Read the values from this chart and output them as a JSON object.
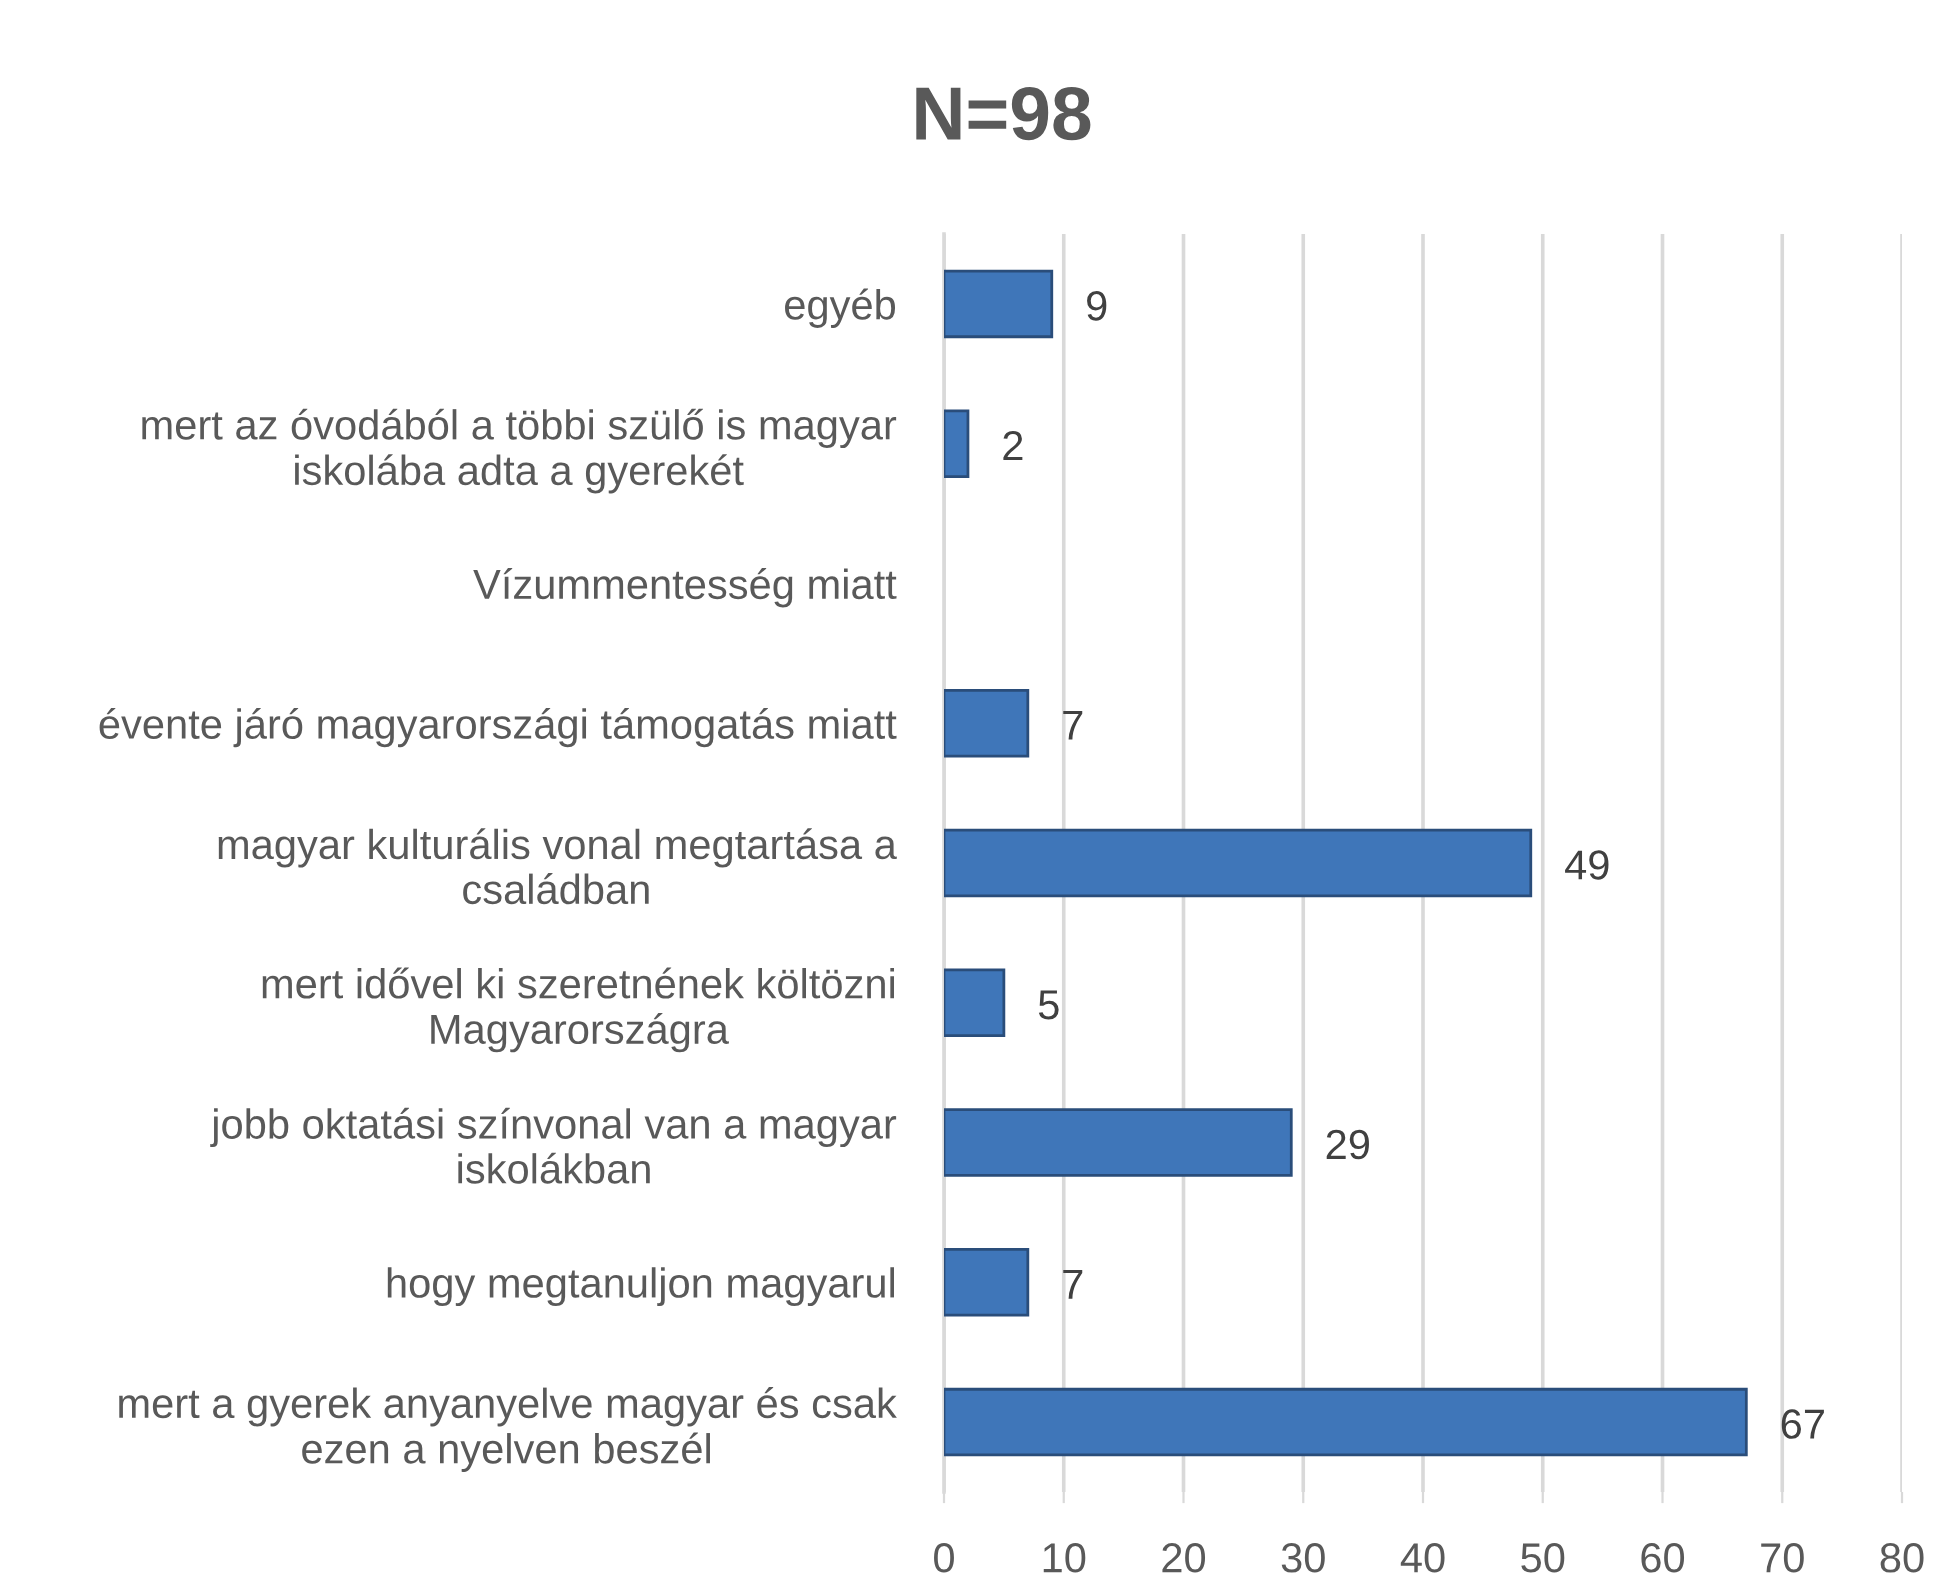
{
  "chart_data": {
    "type": "bar",
    "orientation": "horizontal",
    "title": "N=98",
    "categories": [
      "egyéb",
      "mert az óvodából a többi szülő is magyar\niskolába adta a gyerekét",
      "Vízummentesség miatt",
      "évente járó magyarországi támogatás miatt",
      "magyar kulturális vonal megtartása a\ncsaládban",
      "mert idővel ki szeretnének költözni\nMagyarországra",
      "jobb oktatási színvonal van a magyar\niskolákban",
      "hogy megtanuljon magyarul",
      "mert a gyerek anyanyelve magyar és csak\nezen a nyelven beszél"
    ],
    "values": [
      9,
      2,
      null,
      7,
      49,
      5,
      29,
      7,
      67
    ],
    "color": "#3f76b9",
    "xlim": [
      0,
      80
    ],
    "xticks": [
      0,
      10,
      20,
      30,
      40,
      50,
      60,
      70,
      80
    ],
    "grid": "x",
    "data_labels": true
  }
}
